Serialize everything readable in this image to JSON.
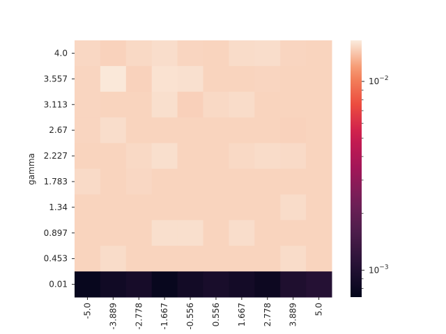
{
  "chart_data": {
    "type": "heatmap",
    "ylabel": "gamma",
    "xlabel": "",
    "x_categories": [
      "-5.0",
      "-3.889",
      "-2.778",
      "-1.667",
      "-0.556",
      "0.556",
      "1.667",
      "2.778",
      "3.889",
      "5.0"
    ],
    "y_categories": [
      "4.0",
      "3.557",
      "3.113",
      "2.67",
      "2.227",
      "1.783",
      "1.34",
      "0.897",
      "0.453",
      "0.01"
    ],
    "values": [
      [
        0.0152,
        0.0149,
        0.0153,
        0.0156,
        0.0151,
        0.015,
        0.0155,
        0.0156,
        0.0151,
        0.015
      ],
      [
        0.0151,
        0.0163,
        0.0149,
        0.0159,
        0.0158,
        0.015,
        0.015,
        0.0151,
        0.015,
        0.015
      ],
      [
        0.0151,
        0.015,
        0.015,
        0.0157,
        0.0148,
        0.0153,
        0.0155,
        0.015,
        0.015,
        0.015
      ],
      [
        0.0151,
        0.0156,
        0.015,
        0.015,
        0.015,
        0.015,
        0.015,
        0.015,
        0.0149,
        0.015
      ],
      [
        0.015,
        0.015,
        0.0153,
        0.0157,
        0.015,
        0.015,
        0.0153,
        0.0155,
        0.0154,
        0.015
      ],
      [
        0.0154,
        0.015,
        0.0152,
        0.015,
        0.015,
        0.015,
        0.015,
        0.015,
        0.015,
        0.015
      ],
      [
        0.015,
        0.015,
        0.015,
        0.015,
        0.015,
        0.015,
        0.015,
        0.015,
        0.0155,
        0.015
      ],
      [
        0.015,
        0.015,
        0.015,
        0.0157,
        0.0157,
        0.015,
        0.0156,
        0.015,
        0.015,
        0.015
      ],
      [
        0.015,
        0.0155,
        0.015,
        0.015,
        0.015,
        0.015,
        0.015,
        0.015,
        0.0155,
        0.015
      ],
      [
        0.00076,
        0.00084,
        0.0009,
        0.00076,
        0.00086,
        0.00092,
        0.00087,
        0.0008,
        0.00098,
        0.00105
      ]
    ],
    "colorbar": {
      "scale": "log",
      "range": [
        0.00072,
        0.0165
      ],
      "ticks": [
        0.001,
        0.01
      ],
      "tick_labels": [
        [
          "10",
          "−3"
        ],
        [
          "10",
          "−2"
        ]
      ],
      "colormap": "rocket"
    },
    "grid": false,
    "legend": "none"
  },
  "colors": {
    "text": "#262626",
    "tick": "#262626"
  }
}
